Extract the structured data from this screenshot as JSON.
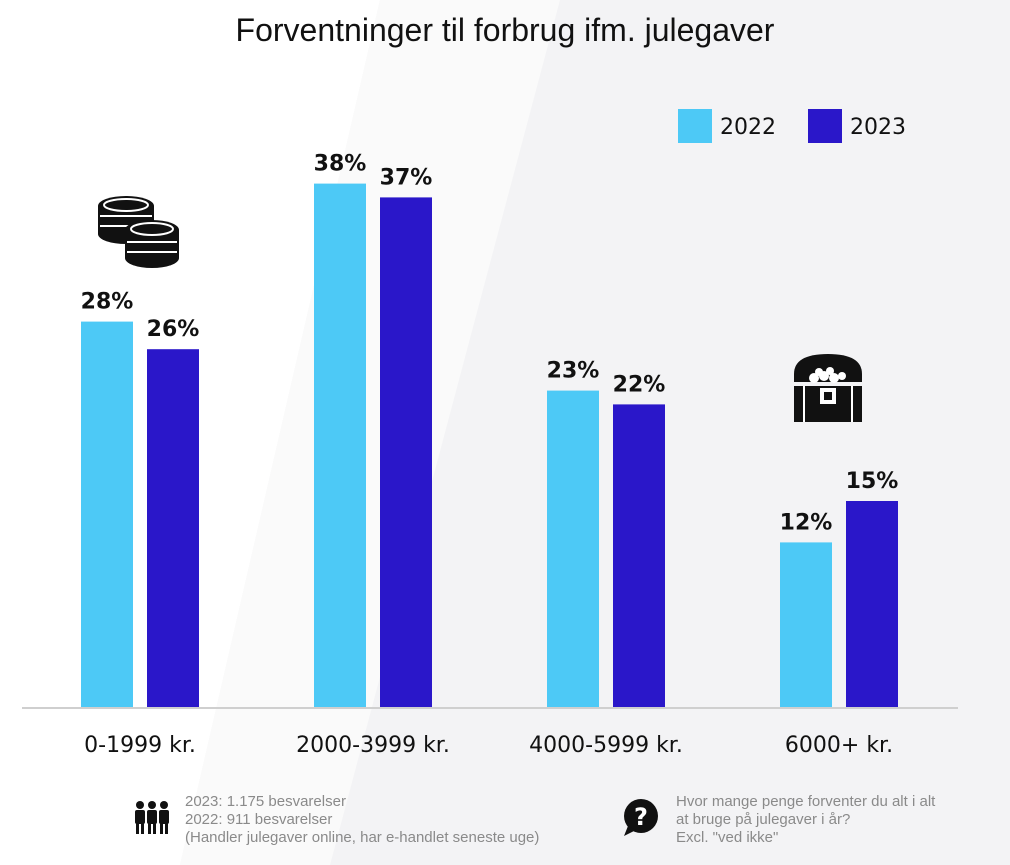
{
  "chart_data": {
    "type": "bar",
    "title": "Forventninger til forbrug ifm. julegaver",
    "categories": [
      "0-1999 kr.",
      "2000-3999 kr.",
      "4000-5999 kr.",
      "6000+ kr."
    ],
    "series": [
      {
        "name": "2022",
        "values": [
          28,
          38,
          23,
          12
        ],
        "labels": [
          "28%",
          "38%",
          "23%",
          "12%"
        ]
      },
      {
        "name": "2023",
        "values": [
          26,
          37,
          22,
          15
        ],
        "labels": [
          "26%",
          "37%",
          "22%",
          "15%"
        ]
      }
    ],
    "ylim": [
      0,
      40
    ],
    "grid": false,
    "legend_position": "top-right",
    "colors": {
      "2022": "#4dc9f6",
      "2023": "#2a17c9"
    },
    "axis_color": "#cfcfcf",
    "icons": [
      "coins-icon",
      "treasure-chest-icon"
    ]
  },
  "footer": {
    "left_lines": [
      "2023: 1.175 besvarelser",
      "2022: 911 besvarelser",
      "(Handler julegaver online, har e-handlet seneste uge)"
    ],
    "right_lines": [
      "Hvor mange penge forventer du alt i alt",
      "at bruge på julegaver i år?",
      "Excl. \"ved ikke\""
    ],
    "left_icon": "people-icon",
    "right_icon": "question-bubble-icon"
  }
}
